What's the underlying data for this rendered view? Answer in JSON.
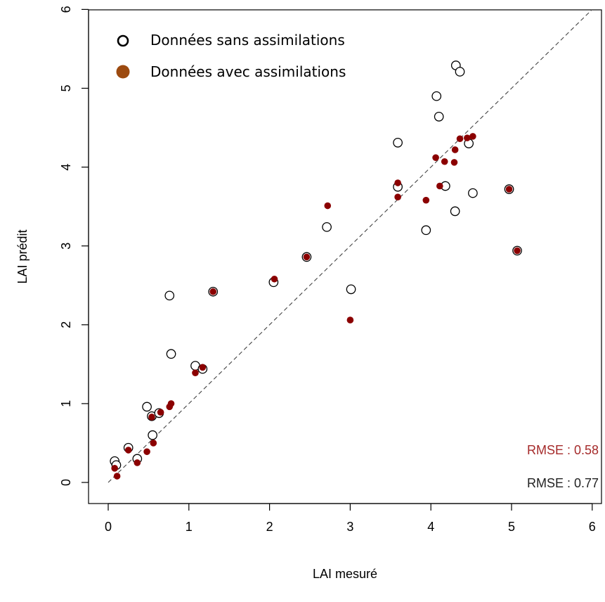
{
  "chart_data": {
    "type": "scatter",
    "xlabel": "LAI mesuré",
    "ylabel": "LAI prédit",
    "xlim": [
      0,
      6
    ],
    "ylim": [
      0,
      6
    ],
    "x_ticks": [
      "0",
      "1",
      "2",
      "3",
      "4",
      "5",
      "6"
    ],
    "y_ticks": [
      "0",
      "1",
      "2",
      "3",
      "4",
      "5",
      "6"
    ],
    "grid": false,
    "legend_position": "top-left",
    "reference_line": {
      "style": "dashed",
      "from": [
        0,
        0
      ],
      "to": [
        6,
        6
      ],
      "color": "#444444"
    },
    "series": [
      {
        "name": "Données sans assimilations",
        "marker": "open-circle",
        "color": "#000000",
        "points": [
          [
            0.08,
            0.27
          ],
          [
            0.1,
            0.22
          ],
          [
            0.25,
            0.44
          ],
          [
            0.36,
            0.3
          ],
          [
            0.48,
            0.96
          ],
          [
            0.54,
            0.84
          ],
          [
            0.55,
            0.6
          ],
          [
            0.63,
            0.88
          ],
          [
            0.76,
            2.37
          ],
          [
            0.78,
            1.63
          ],
          [
            1.08,
            1.48
          ],
          [
            1.17,
            1.44
          ],
          [
            1.3,
            2.42
          ],
          [
            2.05,
            2.54
          ],
          [
            2.46,
            2.86
          ],
          [
            2.71,
            3.24
          ],
          [
            3.01,
            2.45
          ],
          [
            3.59,
            4.31
          ],
          [
            3.59,
            3.75
          ],
          [
            3.94,
            3.2
          ],
          [
            4.07,
            4.9
          ],
          [
            4.1,
            4.64
          ],
          [
            4.18,
            3.76
          ],
          [
            4.3,
            3.44
          ],
          [
            4.31,
            5.29
          ],
          [
            4.36,
            5.21
          ],
          [
            4.47,
            4.3
          ],
          [
            4.52,
            3.67
          ],
          [
            4.97,
            3.72
          ],
          [
            5.07,
            2.94
          ]
        ]
      },
      {
        "name": "Données avec assimilations",
        "marker": "filled-circle",
        "color": "#8b0000",
        "points": [
          [
            0.08,
            0.18
          ],
          [
            0.11,
            0.08
          ],
          [
            0.25,
            0.41
          ],
          [
            0.36,
            0.25
          ],
          [
            0.48,
            0.39
          ],
          [
            0.54,
            0.83
          ],
          [
            0.56,
            0.5
          ],
          [
            0.65,
            0.89
          ],
          [
            0.76,
            0.96
          ],
          [
            0.78,
            1.0
          ],
          [
            1.08,
            1.39
          ],
          [
            1.17,
            1.46
          ],
          [
            1.3,
            2.42
          ],
          [
            2.06,
            2.58
          ],
          [
            2.46,
            2.86
          ],
          [
            2.72,
            3.51
          ],
          [
            3.0,
            2.06
          ],
          [
            3.59,
            3.8
          ],
          [
            3.59,
            3.62
          ],
          [
            3.94,
            3.58
          ],
          [
            4.06,
            4.12
          ],
          [
            4.11,
            3.76
          ],
          [
            4.17,
            4.07
          ],
          [
            4.29,
            4.06
          ],
          [
            4.3,
            4.22
          ],
          [
            4.36,
            4.36
          ],
          [
            4.45,
            4.37
          ],
          [
            4.52,
            4.39
          ],
          [
            4.97,
            3.72
          ],
          [
            5.07,
            2.94
          ]
        ]
      }
    ],
    "annotations": [
      {
        "text": "RMSE : 0.58",
        "color": "#a52a2a"
      },
      {
        "text": "RMSE : 0.77",
        "color": "#222222"
      }
    ]
  },
  "legend": {
    "items": [
      {
        "label": "Données sans assimilations",
        "marker": "open-circle",
        "color": "#000000"
      },
      {
        "label": "Données avec assimilations",
        "marker": "filled-circle",
        "color": "#9c4a0f"
      }
    ]
  }
}
